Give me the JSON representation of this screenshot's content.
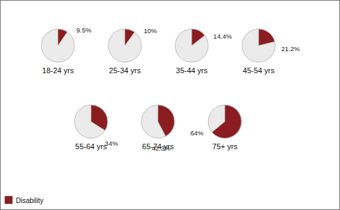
{
  "chart_data": {
    "type": "pie",
    "categories": [
      "18-24 yrs",
      "25-34 yrs",
      "35-44 yrs",
      "45-54 yrs",
      "55-64 yrs",
      "65-74 yrs",
      "75+ yrs"
    ],
    "series": [
      {
        "name": "Disability",
        "color": "#8b1c1f",
        "values": [
          9.5,
          10,
          14.4,
          21.2,
          34,
          42.3,
          64
        ],
        "value_labels": [
          "9.5%",
          "10%",
          "14.4%",
          "21.2%",
          "34%",
          "42.3%",
          "64%"
        ]
      }
    ],
    "ylim": [
      0,
      100
    ],
    "data_labels": true,
    "legend": "bottom-left"
  }
}
